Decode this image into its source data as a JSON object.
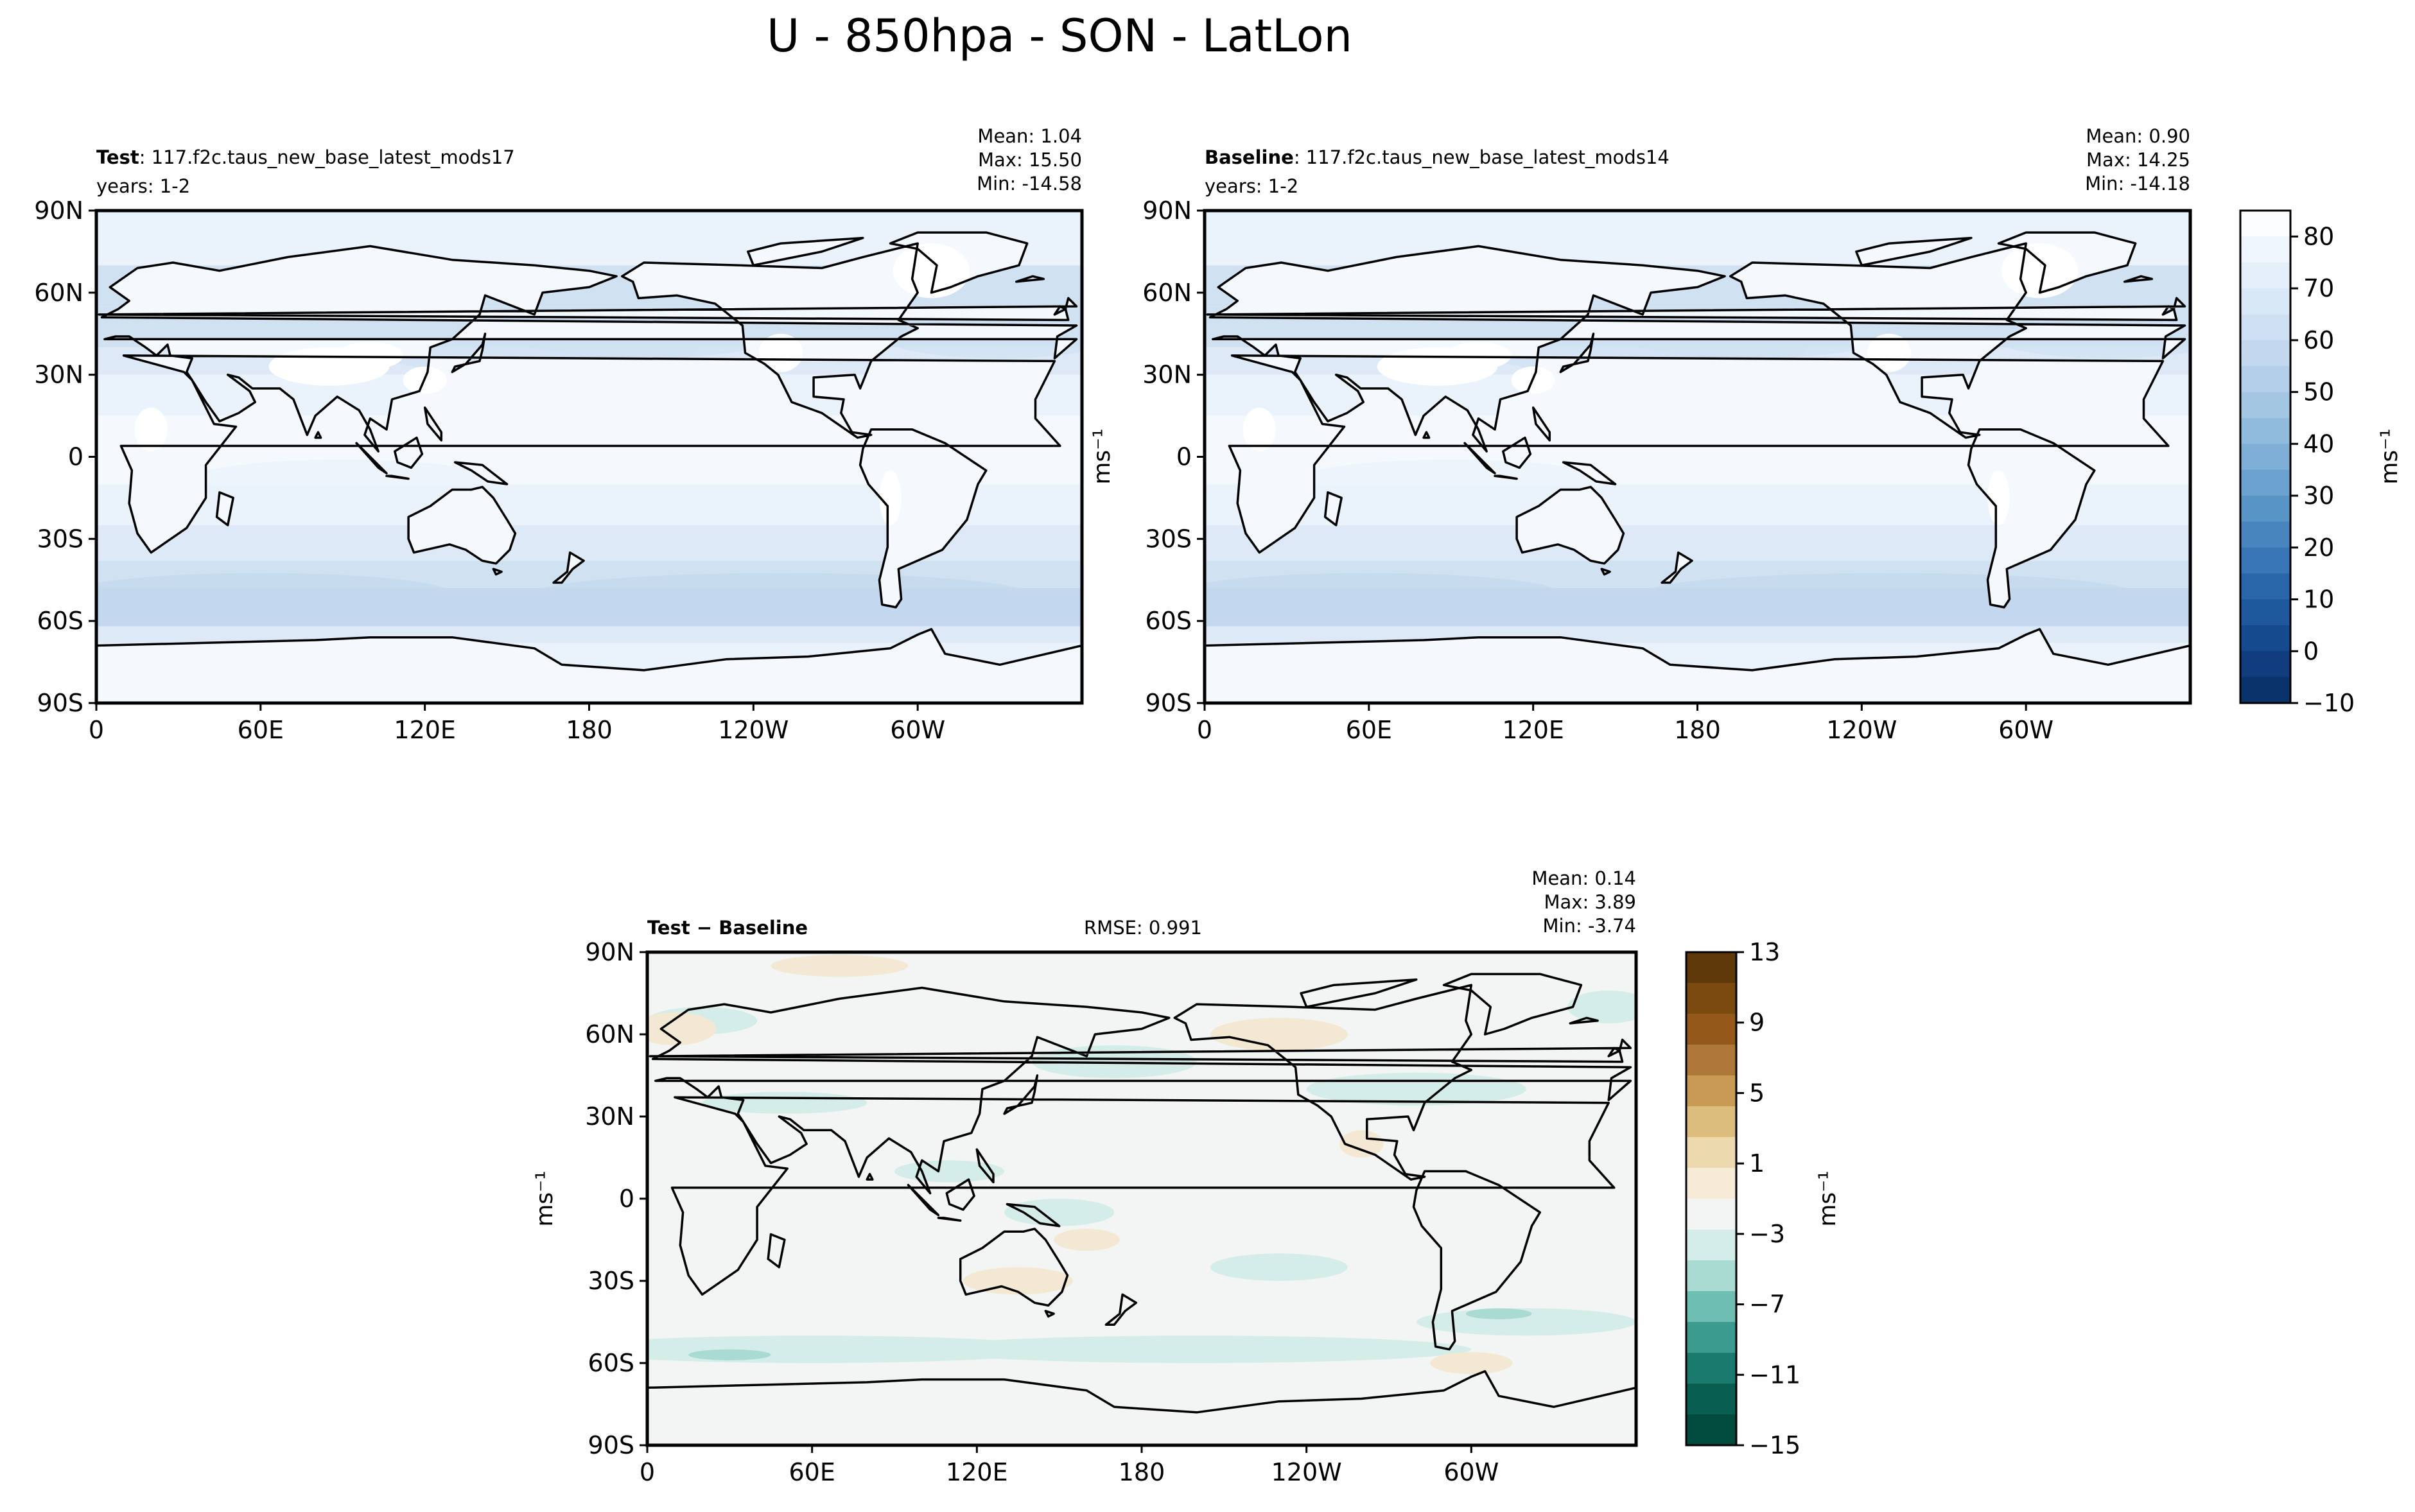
{
  "figure": {
    "title": "U - 850hpa - SON - LatLon"
  },
  "colors": {
    "ocean_top": [
      "#f4f9fe",
      "#eaf2fb",
      "#dde9f7",
      "#d0e1f2",
      "#c3d8ee"
    ],
    "land_top": "#ffffff",
    "ocean_diff": "#f3f5f5",
    "diff_pos": "#d4ede9",
    "diff_pos_strong": "#a9dbd3",
    "diff_neg": "#f3e8d2",
    "coast": "#000000"
  },
  "chart_data": [
    {
      "type": "heatmap",
      "panel": "test",
      "label_bold": "Test",
      "label_rest": ": 117.f2c.taus_new_base_latest_mods17",
      "years": "years: 1-2",
      "stats": {
        "mean": "Mean:  1.04",
        "max": "Max: 15.50",
        "min": "Min: -14.58"
      },
      "mean": 1.04,
      "max": 15.5,
      "min": -14.58,
      "x_ticks": [
        "0",
        "60E",
        "120E",
        "180",
        "120W",
        "60W"
      ],
      "y_ticks": [
        "90N",
        "60N",
        "30N",
        "0",
        "30S",
        "60S",
        "90S"
      ],
      "xlim": [
        0,
        360
      ],
      "ylim": [
        -90,
        90
      ]
    },
    {
      "type": "heatmap",
      "panel": "baseline",
      "label_bold": "Baseline",
      "label_rest": ": 117.f2c.taus_new_base_latest_mods14",
      "years": "years: 1-2",
      "stats": {
        "mean": "Mean:  0.90",
        "max": "Max: 14.25",
        "min": "Min: -14.18"
      },
      "mean": 0.9,
      "max": 14.25,
      "min": -14.18,
      "x_ticks": [
        "0",
        "60E",
        "120E",
        "180",
        "120W",
        "60W"
      ],
      "y_ticks": [
        "90N",
        "60N",
        "30N",
        "0",
        "30S",
        "60S",
        "90S"
      ],
      "xlim": [
        0,
        360
      ],
      "ylim": [
        -90,
        90
      ],
      "colorbar": {
        "label": "ms⁻¹",
        "ticks": [
          "80",
          "70",
          "60",
          "50",
          "40",
          "30",
          "20",
          "10",
          "0",
          "−10"
        ],
        "range": [
          -10,
          85
        ],
        "colors": [
          "#fbfdff",
          "#f0f6fd",
          "#e5eff9",
          "#d9e8f6",
          "#cee0f2",
          "#c2d8ee",
          "#b3cfe9",
          "#a3c6e3",
          "#91bbdd",
          "#7eafd6",
          "#6ba2cf",
          "#5994c7",
          "#4885bf",
          "#3876b5",
          "#2a67aa",
          "#1e589d",
          "#164a8e",
          "#0f3d7d",
          "#0a326b"
        ]
      }
    },
    {
      "type": "heatmap",
      "panel": "diff",
      "label_bold": "Test − Baseline",
      "rmse": "RMSE: 0.991",
      "stats": {
        "mean": "Mean:  0.14",
        "max": "Max:  3.89",
        "min": "Min: -3.74"
      },
      "mean": 0.14,
      "max": 3.89,
      "min": -3.74,
      "rmse_value": 0.991,
      "x_ticks": [
        "0",
        "60E",
        "120E",
        "180",
        "120W",
        "60W"
      ],
      "y_ticks": [
        "90N",
        "60N",
        "30N",
        "0",
        "30S",
        "60S",
        "90S"
      ],
      "xlim": [
        0,
        360
      ],
      "ylim": [
        -90,
        90
      ],
      "colorbar": {
        "label": "ms⁻¹",
        "ticks": [
          "13",
          "9",
          "5",
          "1",
          "−3",
          "−7",
          "−11",
          "−15"
        ],
        "range": [
          -15,
          13
        ],
        "colors": [
          "#5e3a0b",
          "#7b4a0e",
          "#94591a",
          "#b0773a",
          "#c99a53",
          "#dcbd7b",
          "#ecd9ad",
          "#f5ebd6",
          "#f3f5f5",
          "#d4ede9",
          "#a9dbd3",
          "#6ebfb2",
          "#3a9b8e",
          "#197a6e",
          "#095e52",
          "#004a3e"
        ]
      }
    }
  ]
}
